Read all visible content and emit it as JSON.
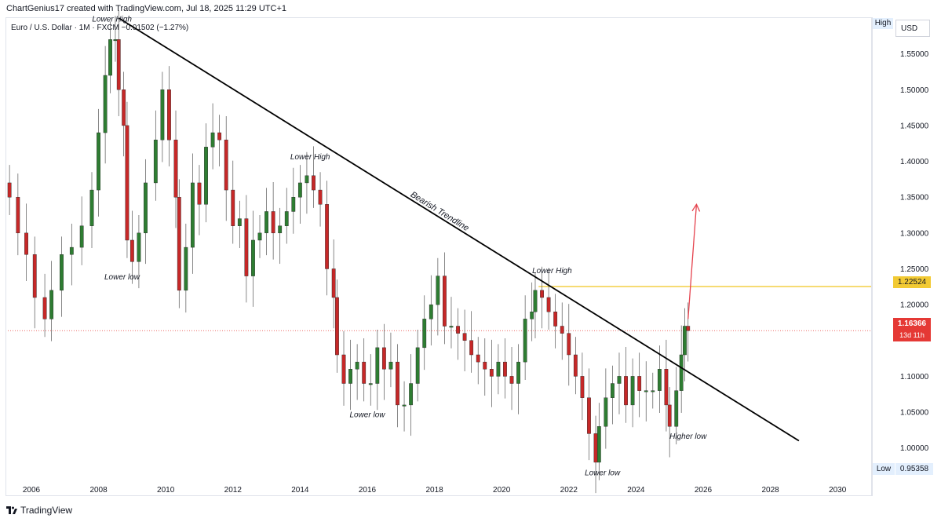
{
  "header": {
    "attribution": "ChartGenius17 created with TradingView.com, Jul 18, 2025 11:29 UTC+1"
  },
  "symbol": {
    "name": "Euro / U.S. Dollar",
    "interval": "1M",
    "source": "FXCM",
    "change": "−0.01502 (−1.27%)"
  },
  "axis_tags": {
    "currency": "USD",
    "high_label": "High",
    "low_label": "Low",
    "low_value": "0.95358"
  },
  "price_tags": {
    "resistance": "1.22524",
    "last": "1.16366",
    "countdown": "13d 11h"
  },
  "footer": {
    "brand": "TradingView"
  },
  "colors": {
    "up": "#2e7d32",
    "down": "#c62828",
    "trendline": "#000000",
    "resistance": "#f2ca33",
    "arrow": "#e5424d",
    "last_price_line": "#e53935"
  },
  "chart_data": {
    "type": "candlestick",
    "title": "",
    "x_ticks": [
      "2006",
      "2008",
      "2010",
      "2012",
      "2014",
      "2016",
      "2018",
      "2020",
      "2022",
      "2024",
      "2026",
      "2028",
      "2030"
    ],
    "y_ticks": [
      "1.55000",
      "1.50000",
      "1.45000",
      "1.40000",
      "1.35000",
      "1.30000",
      "1.25000",
      "1.20000",
      "1.10000",
      "1.05000",
      "1.00000"
    ],
    "ylim": [
      0.935,
      1.6
    ],
    "xlim": [
      2005.3,
      2031.0
    ],
    "grid": false,
    "series": [
      {
        "x": 2005.35,
        "close": 1.35
      },
      {
        "x": 2005.6,
        "close": 1.3
      },
      {
        "x": 2005.85,
        "close": 1.27
      },
      {
        "x": 2006.1,
        "close": 1.21
      },
      {
        "x": 2006.4,
        "close": 1.18
      },
      {
        "x": 2006.6,
        "close": 1.22
      },
      {
        "x": 2006.9,
        "close": 1.27
      },
      {
        "x": 2007.2,
        "close": 1.28
      },
      {
        "x": 2007.5,
        "close": 1.31
      },
      {
        "x": 2007.8,
        "close": 1.36
      },
      {
        "x": 2008.0,
        "close": 1.44
      },
      {
        "x": 2008.2,
        "close": 1.52
      },
      {
        "x": 2008.35,
        "close": 1.57
      },
      {
        "x": 2008.5,
        "close": 1.57
      },
      {
        "x": 2008.6,
        "close": 1.5
      },
      {
        "x": 2008.75,
        "close": 1.45
      },
      {
        "x": 2008.85,
        "close": 1.29
      },
      {
        "x": 2009.0,
        "close": 1.26
      },
      {
        "x": 2009.2,
        "close": 1.3
      },
      {
        "x": 2009.4,
        "close": 1.37
      },
      {
        "x": 2009.7,
        "close": 1.43
      },
      {
        "x": 2009.9,
        "close": 1.5
      },
      {
        "x": 2010.1,
        "close": 1.43
      },
      {
        "x": 2010.3,
        "close": 1.35
      },
      {
        "x": 2010.4,
        "close": 1.22
      },
      {
        "x": 2010.6,
        "close": 1.28
      },
      {
        "x": 2010.8,
        "close": 1.37
      },
      {
        "x": 2011.0,
        "close": 1.34
      },
      {
        "x": 2011.2,
        "close": 1.42
      },
      {
        "x": 2011.4,
        "close": 1.44
      },
      {
        "x": 2011.6,
        "close": 1.43
      },
      {
        "x": 2011.8,
        "close": 1.36
      },
      {
        "x": 2012.0,
        "close": 1.31
      },
      {
        "x": 2012.2,
        "close": 1.32
      },
      {
        "x": 2012.4,
        "close": 1.24
      },
      {
        "x": 2012.6,
        "close": 1.29
      },
      {
        "x": 2012.8,
        "close": 1.3
      },
      {
        "x": 2013.0,
        "close": 1.33
      },
      {
        "x": 2013.2,
        "close": 1.3
      },
      {
        "x": 2013.4,
        "close": 1.31
      },
      {
        "x": 2013.6,
        "close": 1.33
      },
      {
        "x": 2013.8,
        "close": 1.35
      },
      {
        "x": 2014.0,
        "close": 1.37
      },
      {
        "x": 2014.2,
        "close": 1.38
      },
      {
        "x": 2014.4,
        "close": 1.36
      },
      {
        "x": 2014.6,
        "close": 1.34
      },
      {
        "x": 2014.8,
        "close": 1.25
      },
      {
        "x": 2015.0,
        "close": 1.21
      },
      {
        "x": 2015.1,
        "close": 1.13
      },
      {
        "x": 2015.3,
        "close": 1.09
      },
      {
        "x": 2015.5,
        "close": 1.11
      },
      {
        "x": 2015.7,
        "close": 1.12
      },
      {
        "x": 2015.9,
        "close": 1.09
      },
      {
        "x": 2016.1,
        "close": 1.09
      },
      {
        "x": 2016.3,
        "close": 1.14
      },
      {
        "x": 2016.5,
        "close": 1.11
      },
      {
        "x": 2016.7,
        "close": 1.12
      },
      {
        "x": 2016.9,
        "close": 1.06
      },
      {
        "x": 2017.1,
        "close": 1.06
      },
      {
        "x": 2017.3,
        "close": 1.09
      },
      {
        "x": 2017.5,
        "close": 1.14
      },
      {
        "x": 2017.7,
        "close": 1.18
      },
      {
        "x": 2017.9,
        "close": 1.2
      },
      {
        "x": 2018.1,
        "close": 1.24
      },
      {
        "x": 2018.3,
        "close": 1.17
      },
      {
        "x": 2018.5,
        "close": 1.17
      },
      {
        "x": 2018.7,
        "close": 1.16
      },
      {
        "x": 2018.9,
        "close": 1.15
      },
      {
        "x": 2019.1,
        "close": 1.13
      },
      {
        "x": 2019.3,
        "close": 1.12
      },
      {
        "x": 2019.5,
        "close": 1.11
      },
      {
        "x": 2019.7,
        "close": 1.1
      },
      {
        "x": 2019.9,
        "close": 1.12
      },
      {
        "x": 2020.1,
        "close": 1.1
      },
      {
        "x": 2020.3,
        "close": 1.09
      },
      {
        "x": 2020.5,
        "close": 1.12
      },
      {
        "x": 2020.7,
        "close": 1.18
      },
      {
        "x": 2020.9,
        "close": 1.19
      },
      {
        "x": 2021.0,
        "close": 1.22
      },
      {
        "x": 2021.2,
        "close": 1.21
      },
      {
        "x": 2021.4,
        "close": 1.19
      },
      {
        "x": 2021.6,
        "close": 1.17
      },
      {
        "x": 2021.8,
        "close": 1.16
      },
      {
        "x": 2022.0,
        "close": 1.13
      },
      {
        "x": 2022.2,
        "close": 1.1
      },
      {
        "x": 2022.4,
        "close": 1.07
      },
      {
        "x": 2022.6,
        "close": 1.02
      },
      {
        "x": 2022.8,
        "close": 0.98
      },
      {
        "x": 2022.9,
        "close": 1.03
      },
      {
        "x": 2023.1,
        "close": 1.07
      },
      {
        "x": 2023.3,
        "close": 1.09
      },
      {
        "x": 2023.5,
        "close": 1.1
      },
      {
        "x": 2023.7,
        "close": 1.06
      },
      {
        "x": 2023.9,
        "close": 1.1
      },
      {
        "x": 2024.1,
        "close": 1.08
      },
      {
        "x": 2024.3,
        "close": 1.08
      },
      {
        "x": 2024.5,
        "close": 1.08
      },
      {
        "x": 2024.7,
        "close": 1.11
      },
      {
        "x": 2024.9,
        "close": 1.06
      },
      {
        "x": 2025.0,
        "close": 1.03
      },
      {
        "x": 2025.2,
        "close": 1.08
      },
      {
        "x": 2025.35,
        "close": 1.13
      },
      {
        "x": 2025.45,
        "close": 1.17
      },
      {
        "x": 2025.55,
        "close": 1.16366
      }
    ],
    "trendline": {
      "label": "Bearish Trendline",
      "start": {
        "x": 2008.6,
        "y": 1.6
      },
      "end": {
        "x": 2028.85,
        "y": 1.01
      }
    },
    "resistance_line": {
      "y": 1.22524,
      "x_start": 2021.1
    },
    "last_price_line": {
      "y": 1.16366
    },
    "projection_arrow": {
      "start": {
        "x": 2025.55,
        "y": 1.18
      },
      "end": {
        "x": 2025.8,
        "y": 1.34
      }
    },
    "annotations": [
      {
        "text": "Lower High",
        "x": 2008.4,
        "y": 1.595
      },
      {
        "text": "Lower low",
        "x": 2008.7,
        "y": 1.235
      },
      {
        "text": "Lower High",
        "x": 2014.3,
        "y": 1.403
      },
      {
        "text": "Lower low",
        "x": 2016.0,
        "y": 1.043
      },
      {
        "text": "Lower High",
        "x": 2021.5,
        "y": 1.244
      },
      {
        "text": "Lower low",
        "x": 2023.0,
        "y": 0.962
      },
      {
        "text": "Higher low",
        "x": 2025.55,
        "y": 1.013
      }
    ]
  }
}
